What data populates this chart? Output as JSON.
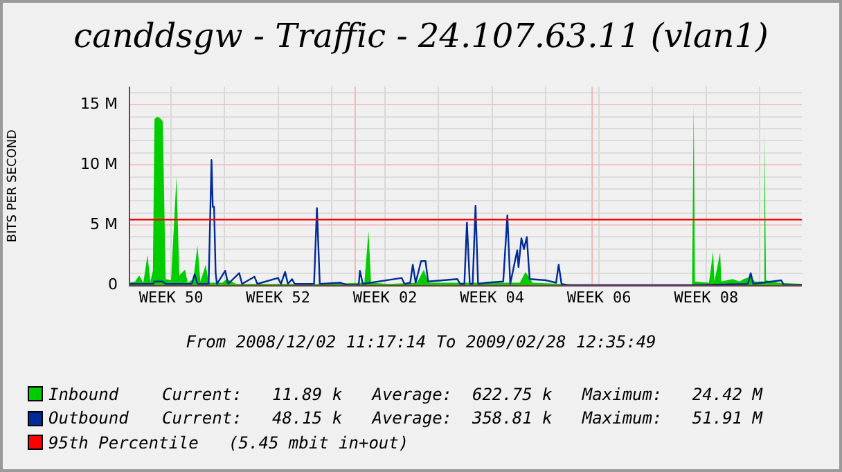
{
  "chart_data": {
    "type": "line",
    "title": "canddsgw - Traffic - 24.107.63.11 (vlan1)",
    "ylabel": "BITS PER SECOND",
    "annotations": [
      "From 2008/12/02 11:17:14 To 2009/02/28 12:35:49",
      "Current:   11.89 k   Average:  622.75 k   Maximum:   24.42 M",
      "Current:   48.15 k   Average:  358.81 k   Maximum:   51.91 M"
    ],
    "xlim": [
      "2008-12-02T11:17",
      "2009-02-28T12:35"
    ],
    "xticks": [
      {
        "value": "2008-12-08",
        "label": "WEEK 50"
      },
      {
        "value": "2008-12-15",
        "label": null
      },
      {
        "value": "2008-12-22",
        "label": "WEEK 52"
      },
      {
        "value": "2008-12-29",
        "label": null
      },
      {
        "value": "2009-01-05",
        "label": "WEEK 02"
      },
      {
        "value": "2009-01-12",
        "label": null
      },
      {
        "value": "2009-01-19",
        "label": "WEEK 04"
      },
      {
        "value": "2009-01-26",
        "label": null
      },
      {
        "value": "2009-02-02",
        "label": "WEEK 06"
      },
      {
        "value": "2009-02-09",
        "label": null
      },
      {
        "value": "2009-02-16",
        "label": "WEEK 08"
      },
      {
        "value": "2009-02-23",
        "label": null
      }
    ],
    "ylim": [
      0,
      16.5
    ],
    "yticks": [
      0,
      {
        "value": 1,
        "label": null
      },
      {
        "value": 2,
        "label": null
      },
      {
        "value": 3,
        "label": null
      },
      {
        "value": 4,
        "label": null
      },
      {
        "value": 5,
        "label": "5 M"
      },
      {
        "value": 6,
        "label": null
      },
      {
        "value": 7,
        "label": null
      },
      {
        "value": 8,
        "label": null
      },
      {
        "value": 9,
        "label": null
      },
      {
        "value": 10,
        "label": "10 M"
      },
      {
        "value": 11,
        "label": null
      },
      {
        "value": 12,
        "label": null
      },
      {
        "value": 13,
        "label": null
      },
      {
        "value": 14,
        "label": null
      },
      {
        "value": 15,
        "label": "15 M"
      },
      {
        "value": 16,
        "label": null
      }
    ],
    "grid": true,
    "legend": "bottom",
    "ref_lines": [
      {
        "axis": "y",
        "value": 5.45,
        "label": "95th Percentile   (5.45 mbit in+out)",
        "color": "#ff0000"
      },
      {
        "axis": "x",
        "value": "2009-01-01",
        "color": "#f2b8b8"
      },
      {
        "axis": "x",
        "value": "2009-02-01",
        "color": "#f2b8b8"
      }
    ],
    "series": [
      {
        "name": "Inbound",
        "type": "area",
        "color": "#00cc00",
        "x": [
          "2008-12-02T11:17",
          "2008-12-03T07:00",
          "2008-12-03T20:00",
          "2008-12-04T09:00",
          "2008-12-04T22:00",
          "2008-12-05T07:00",
          "2008-12-05T15:00",
          "2008-12-05T20:00",
          "2008-12-06T04:00",
          "2008-12-06T13:00",
          "2008-12-06T22:00",
          "2008-12-07T07:00",
          "2008-12-08T00:00",
          "2008-12-08T17:00",
          "2008-12-09T02:00",
          "2008-12-09T20:00",
          "2008-12-10T04:00",
          "2008-12-10T22:00",
          "2008-12-11T11:00",
          "2008-12-11T20:00",
          "2008-12-12T13:00",
          "2008-12-12T22:00",
          "2008-12-14T17:00",
          "2008-12-15T07:00",
          "2008-12-16T13:00",
          "2008-12-27T11:00",
          "2009-01-02T07:00",
          "2009-01-02T20:00",
          "2009-01-03T04:00",
          "2009-01-05T13:00",
          "2009-01-09T04:00",
          "2009-01-10T02:00",
          "2009-01-10T15:00",
          "2009-01-22T15:00",
          "2009-01-23T09:00",
          "2009-01-24T07:00",
          "2009-01-28T07:00",
          "2009-01-31T00:00",
          "2009-02-14T04:00",
          "2009-02-14T09:00",
          "2009-02-14T13:00",
          "2009-02-16T09:00",
          "2009-02-16T22:00",
          "2009-02-17T02:00",
          "2009-02-17T20:00",
          "2009-02-18T00:00",
          "2009-02-19T11:00",
          "2009-02-20T09:00",
          "2009-02-20T22:00",
          "2009-02-21T20:00",
          "2009-02-22T09:00",
          "2009-02-23T11:00",
          "2009-02-23T15:00",
          "2009-02-23T20:00",
          "2009-02-25T11:00",
          "2009-02-28T12:35"
        ],
        "values": [
          0.2,
          0.3,
          0.8,
          0.2,
          2.5,
          0.3,
          1.2,
          13.8,
          14,
          13.9,
          13.6,
          0.5,
          0.4,
          9,
          0.8,
          1.3,
          0.2,
          0.5,
          3.3,
          0.3,
          1.7,
          0.2,
          0.2,
          0.5,
          0.1,
          0.1,
          0.2,
          4.5,
          0.2,
          0.1,
          0.2,
          1.3,
          0.2,
          0.2,
          1.1,
          0.2,
          0.1,
          0,
          0,
          15,
          0.3,
          0.2,
          2.8,
          0.3,
          2.7,
          0.3,
          0.5,
          0.3,
          0.5,
          0.7,
          0.3,
          0.3,
          12.9,
          0.4,
          0.2,
          0.1
        ]
      },
      {
        "name": "Outbound",
        "type": "line",
        "color": "#002a97",
        "x": [
          "2008-12-02T11:17",
          "2008-12-05T15:00",
          "2008-12-05T20:00",
          "2008-12-06T22:00",
          "2008-12-07T07:00",
          "2008-12-10T17:00",
          "2008-12-11T02:00",
          "2008-12-11T11:00",
          "2008-12-12T22:00",
          "2008-12-13T07:00",
          "2008-12-13T11:00",
          "2008-12-13T15:00",
          "2008-12-13T20:00",
          "2008-12-14T00:00",
          "2008-12-15T02:00",
          "2008-12-15T11:00",
          "2008-12-16T22:00",
          "2008-12-17T07:00",
          "2008-12-18T22:00",
          "2008-12-19T07:00",
          "2008-12-22T00:00",
          "2008-12-22T09:00",
          "2008-12-22T22:00",
          "2008-12-23T07:00",
          "2008-12-23T20:00",
          "2008-12-24T04:00",
          "2008-12-26T17:00",
          "2008-12-27T02:00",
          "2008-12-27T11:00",
          "2008-12-30T04:00",
          "2008-12-31T02:00",
          "2009-01-01T13:00",
          "2009-01-01T17:00",
          "2009-01-02T02:00",
          "2009-01-07T04:00",
          "2009-01-07T13:00",
          "2009-01-08T07:00",
          "2009-01-08T15:00",
          "2009-01-09T00:00",
          "2009-01-09T17:00",
          "2009-01-10T07:00",
          "2009-01-10T15:00",
          "2009-01-14T11:00",
          "2009-01-14T20:00",
          "2009-01-15T09:00",
          "2009-01-15T17:00",
          "2009-01-16T02:00",
          "2009-01-16T11:00",
          "2009-01-16T20:00",
          "2009-01-17T04:00",
          "2009-01-18T07:00",
          "2009-01-20T11:00",
          "2009-01-21T00:00",
          "2009-01-21T09:00",
          "2009-01-22T07:00",
          "2009-01-22T11:00",
          "2009-01-22T20:00",
          "2009-01-23T04:00",
          "2009-01-23T13:00",
          "2009-01-23T22:00",
          "2009-01-26T02:00",
          "2009-01-27T09:00",
          "2009-01-27T17:00",
          "2009-01-28T02:00",
          "2009-01-28T20:00",
          "2009-02-14T04:00",
          "2009-02-21T11:00",
          "2009-02-21T20:00",
          "2009-02-22T04:00",
          "2009-02-25T20:00",
          "2009-02-26T04:00",
          "2009-02-28T12:35"
        ],
        "values": [
          0.1,
          0.1,
          0.3,
          0.3,
          0.1,
          0.1,
          0.9,
          0.1,
          0.1,
          10.4,
          6.5,
          6.5,
          1,
          0.1,
          1.2,
          0.1,
          1,
          0.1,
          0.7,
          0.1,
          0.6,
          0.1,
          1.1,
          0.1,
          0.5,
          0.1,
          0.1,
          6.4,
          0.1,
          0.2,
          0,
          0,
          1.2,
          0.1,
          0.6,
          0.1,
          0.2,
          1.7,
          0.2,
          2,
          2,
          0.3,
          0.5,
          0.1,
          0.1,
          5.2,
          0.1,
          0.1,
          6.6,
          0.1,
          0.2,
          0.3,
          5.8,
          0.1,
          2.9,
          1.5,
          3.9,
          3,
          4,
          0.5,
          0.4,
          0.2,
          1.7,
          0.1,
          0,
          0,
          0.1,
          1,
          0.1,
          0.4,
          0,
          0
        ]
      }
    ]
  }
}
